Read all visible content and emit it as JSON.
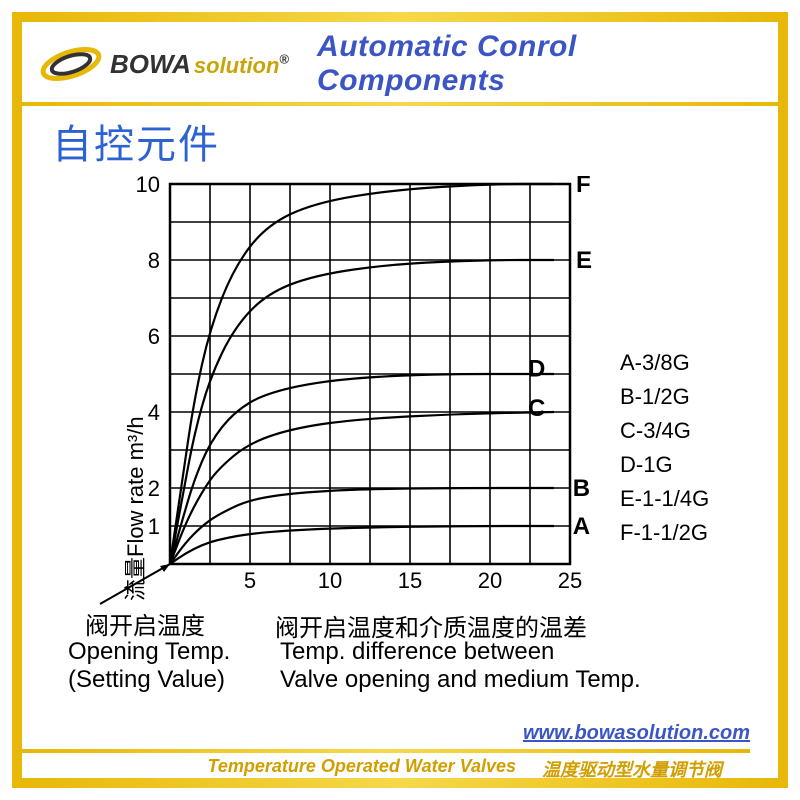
{
  "brand": {
    "bowa": "BOWA",
    "solution": "solution",
    "reg": "®"
  },
  "title_en": "Automatic Conrol Components",
  "title_cn": "自控元件",
  "chart": {
    "type": "line",
    "background_color": "#ffffff",
    "grid_color": "#000000",
    "line_color": "#000000",
    "line_width": 2.2,
    "grid_width": 1.6,
    "x": {
      "lim": [
        0,
        25
      ],
      "ticks": [
        5,
        10,
        15,
        20,
        25
      ],
      "label_cn": "阀开启温度和介质温度的温差",
      "label_en_l1": "Temp. difference between",
      "label_en_l2": "Valve opening and medium Temp."
    },
    "y": {
      "lim": [
        0,
        10
      ],
      "ticks": [
        1,
        2,
        4,
        6,
        8,
        10
      ],
      "label": "流量Flow rate m³/h"
    },
    "opening": {
      "cn": "阀开启温度",
      "en_l1": "Opening Temp.",
      "en_l2": "(Setting Value)"
    },
    "series": {
      "A": {
        "label": "A",
        "pts": [
          [
            0,
            0
          ],
          [
            1,
            0.29
          ],
          [
            2,
            0.5
          ],
          [
            3,
            0.64
          ],
          [
            5,
            0.8
          ],
          [
            8,
            0.9
          ],
          [
            12,
            0.96
          ],
          [
            18,
            1.0
          ],
          [
            24,
            1.0
          ]
        ]
      },
      "B": {
        "label": "B",
        "pts": [
          [
            0,
            0
          ],
          [
            1,
            0.58
          ],
          [
            2,
            1.0
          ],
          [
            3,
            1.3
          ],
          [
            5,
            1.7
          ],
          [
            8,
            1.88
          ],
          [
            12,
            1.97
          ],
          [
            18,
            2.0
          ],
          [
            24,
            2.0
          ]
        ]
      },
      "C": {
        "label": "C",
        "pts": [
          [
            0,
            0
          ],
          [
            1,
            1.1
          ],
          [
            2,
            1.9
          ],
          [
            3,
            2.5
          ],
          [
            5,
            3.2
          ],
          [
            8,
            3.6
          ],
          [
            12,
            3.82
          ],
          [
            18,
            3.95
          ],
          [
            24,
            4.0
          ]
        ]
      },
      "D": {
        "label": "D",
        "pts": [
          [
            0,
            0
          ],
          [
            0.8,
            1.2
          ],
          [
            1.5,
            2.2
          ],
          [
            2.5,
            3.2
          ],
          [
            4,
            4.0
          ],
          [
            6,
            4.5
          ],
          [
            10,
            4.85
          ],
          [
            16,
            5.0
          ],
          [
            24,
            5.0
          ]
        ]
      },
      "E": {
        "label": "E",
        "pts": [
          [
            0,
            0
          ],
          [
            0.8,
            1.8
          ],
          [
            1.5,
            3.4
          ],
          [
            2.5,
            4.9
          ],
          [
            4,
            6.2
          ],
          [
            6,
            7.1
          ],
          [
            9,
            7.6
          ],
          [
            14,
            7.9
          ],
          [
            20,
            8.0
          ],
          [
            24,
            8.0
          ]
        ]
      },
      "F": {
        "label": "F",
        "pts": [
          [
            0,
            0
          ],
          [
            0.8,
            2.3
          ],
          [
            1.5,
            4.3
          ],
          [
            2.5,
            6.2
          ],
          [
            4,
            7.8
          ],
          [
            6,
            8.9
          ],
          [
            9,
            9.5
          ],
          [
            14,
            9.85
          ],
          [
            20,
            10.0
          ],
          [
            24,
            10.0
          ]
        ]
      }
    },
    "curve_label_pos": {
      "A": [
        24.8,
        1.0
      ],
      "B": [
        24.8,
        2.0
      ],
      "C": [
        22,
        4.1
      ],
      "D": [
        22,
        5.15
      ],
      "E": [
        25,
        8.0
      ],
      "F": [
        25,
        10.0
      ]
    },
    "legend": [
      "A-3/8G",
      "B-1/2G",
      "C-3/4G",
      "D-1G",
      "E-1-1/4G",
      "F-1-1/2G"
    ]
  },
  "footer": {
    "url": "www.bowasolution.com",
    "prod_en": "Temperature Operated Water Valves",
    "prod_cn": "温度驱动型水量调节阀"
  },
  "colors": {
    "gold": "#e8b808",
    "blue": "#3b56c4",
    "gold_text": "#d19f00"
  }
}
